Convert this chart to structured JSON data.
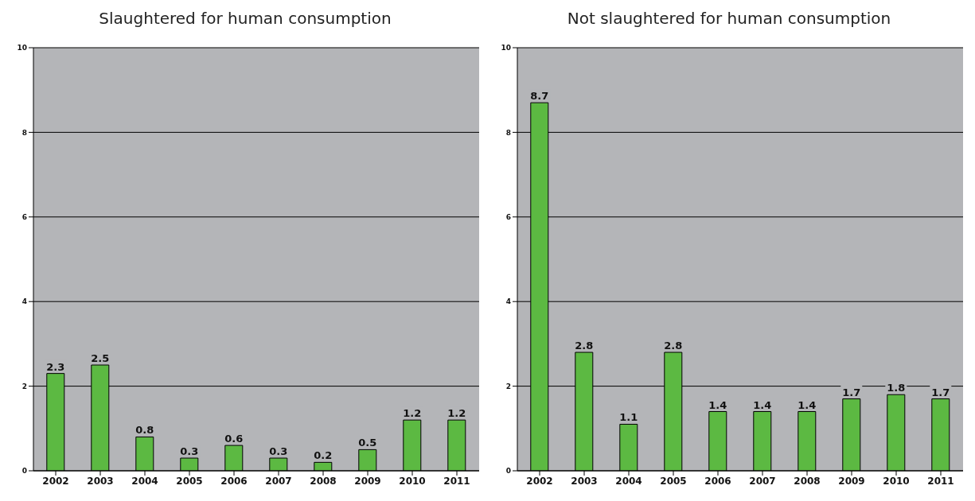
{
  "chart_data": [
    {
      "type": "bar",
      "title": "Slaughtered for human consumption",
      "categories": [
        "2002",
        "2003",
        "2004",
        "2005",
        "2006",
        "2007",
        "2008",
        "2009",
        "2010",
        "2011"
      ],
      "values": [
        2.3,
        2.5,
        0.8,
        0.3,
        0.6,
        0.3,
        0.2,
        0.5,
        1.2,
        1.2
      ],
      "color": "#5cb942",
      "ylim": [
        0,
        10
      ],
      "yticks": [
        0,
        2,
        4,
        6,
        8,
        10
      ],
      "grid": "y",
      "data_labels": true,
      "legend": false
    },
    {
      "type": "bar",
      "title": "Not slaughtered for human consumption",
      "categories": [
        "2002",
        "2003",
        "2004",
        "2005",
        "2006",
        "2007",
        "2008",
        "2009",
        "2010",
        "2011"
      ],
      "values": [
        8.7,
        2.8,
        1.1,
        2.8,
        1.4,
        1.4,
        1.4,
        1.7,
        1.8,
        1.7
      ],
      "color": "#5cb942",
      "ylim": [
        0,
        10
      ],
      "yticks": [
        0,
        2,
        4,
        6,
        8,
        10
      ],
      "grid": "y",
      "data_labels": true,
      "legend": false
    }
  ]
}
